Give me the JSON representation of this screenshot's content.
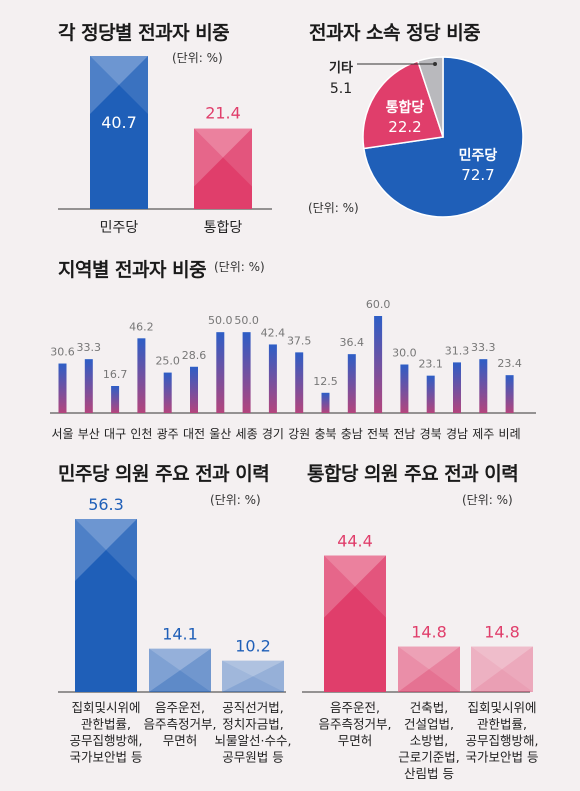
{
  "titles": {
    "party_share": "각 정당별 전과자 비중",
    "pie": "전과자 소속 정당 비중",
    "region": "지역별 전과자 비중",
    "minju_history": "민주당 의원 주요 전과 이력",
    "tonghap_history": "통합당 의원 주요 전과 이력"
  },
  "units": {
    "party_share": "(단위: %)",
    "pie": "(단위: %)",
    "region": "(단위: %)",
    "minju_history": "(단위: %)",
    "tonghap_history": "(단위: %)"
  },
  "colors": {
    "blue": "#1f5fb8",
    "pink": "#e03e6b",
    "gray": "#b9b9bd",
    "region_top": "#2f5cc4",
    "region_bottom": "#b0457f"
  },
  "chart_data": [
    {
      "id": "party_share",
      "type": "bar",
      "title": "각 정당별 전과자 비중",
      "categories": [
        "민주당",
        "통합당"
      ],
      "values": [
        40.7,
        21.4
      ],
      "unit": "(단위: %)"
    },
    {
      "id": "pie",
      "type": "pie",
      "title": "전과자 소속 정당 비중",
      "labels": [
        "민주당",
        "통합당",
        "기타"
      ],
      "values": [
        72.7,
        22.2,
        5.1
      ],
      "unit": "(단위: %)"
    },
    {
      "id": "region",
      "type": "bar",
      "title": "지역별 전과자 비중",
      "categories": [
        "서울",
        "부산",
        "대구",
        "인천",
        "광주",
        "대전",
        "울산",
        "세종",
        "경기",
        "강원",
        "충북",
        "충남",
        "전북",
        "전남",
        "경북",
        "경남",
        "제주",
        "비례"
      ],
      "values": [
        30.6,
        33.3,
        16.7,
        46.2,
        25.0,
        28.6,
        50.0,
        50.0,
        42.4,
        37.5,
        12.5,
        36.4,
        60.0,
        30.0,
        23.1,
        31.3,
        33.3,
        23.4
      ],
      "value_labels": [
        "30.6",
        "33.3",
        "16.7",
        "46.2",
        "25.0",
        "28.6",
        "50.0",
        "50.0",
        "42.4",
        "37.5",
        "12.5",
        "36.4",
        "60.0",
        "30.0",
        "23.1",
        "31.3",
        "33.3",
        "23.4"
      ],
      "unit": "(단위: %)"
    },
    {
      "id": "minju_history",
      "type": "bar",
      "title": "민주당 의원 주요 전과 이력",
      "categories": [
        [
          "집회및시위에",
          "관한법률,",
          "공무집행방해,",
          "국가보안법 등"
        ],
        [
          "음주운전,",
          "음주측정거부,",
          "무면허"
        ],
        [
          "공직선거법,",
          "정치자금법,",
          "뇌물알선·수수,",
          "공무원법 등"
        ]
      ],
      "values": [
        56.3,
        14.1,
        10.2
      ],
      "unit": "(단위: %)"
    },
    {
      "id": "tonghap_history",
      "type": "bar",
      "title": "통합당 의원 주요 전과 이력",
      "categories": [
        [
          "음주운전,",
          "음주측정거부,",
          "무면허"
        ],
        [
          "건축법,",
          "건설업법,",
          "소방법,",
          "근로기준법,",
          "산림법 등"
        ],
        [
          "집회및시위에",
          "관한법률,",
          "공무집행방해,",
          "국가보안법 등"
        ]
      ],
      "values": [
        44.4,
        14.8,
        14.8
      ],
      "unit": "(단위: %)"
    }
  ]
}
